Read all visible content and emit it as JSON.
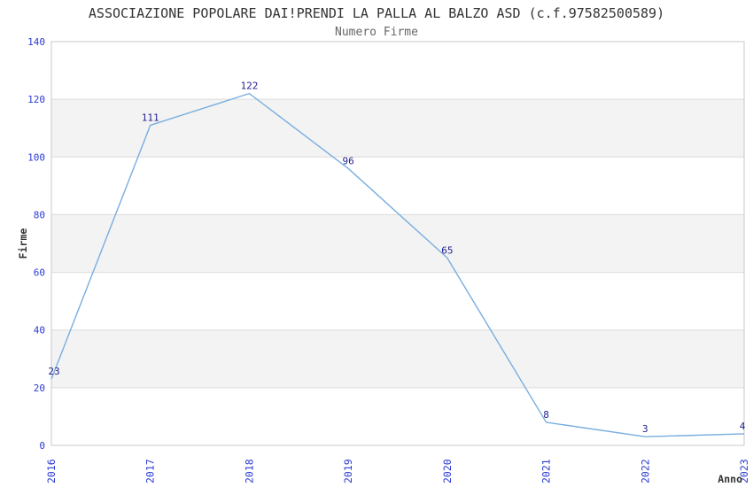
{
  "header": {
    "title": "ASSOCIAZIONE POPOLARE DAI!PRENDI LA PALLA AL BALZO ASD (c.f.97582500589)",
    "subtitle": "Numero Firme"
  },
  "chart_data": {
    "type": "line",
    "title": "ASSOCIAZIONE POPOLARE DAI!PRENDI LA PALLA AL BALZO ASD (c.f.97582500589)",
    "subtitle": "Numero Firme",
    "categories": [
      "2016",
      "2017",
      "2018",
      "2019",
      "2020",
      "2021",
      "2022",
      "2023"
    ],
    "values": [
      23,
      111,
      122,
      96,
      65,
      8,
      3,
      4
    ],
    "data_labels": [
      "23",
      "111",
      "122",
      "96",
      "65",
      "8",
      "3",
      "4"
    ],
    "xlabel": "Anno",
    "ylabel": "Firme",
    "ylim": [
      0,
      140
    ],
    "ytick_step": 20,
    "yticks": [
      "0",
      "20",
      "40",
      "60",
      "80",
      "100",
      "120",
      "140"
    ],
    "grid": true,
    "legend": "none",
    "band_pattern": "alternating horizontal bands every 20 units, gray on 20-40, 60-80, 100-120",
    "colors": {
      "line": "#79ade0",
      "band": "#f3f3f3",
      "grid": "#dcdcdc",
      "border": "#c9c9c9",
      "tick_label": "#2b3bd2",
      "data_label": "#1f1f8f",
      "title": "#333333",
      "subtitle": "#666666",
      "axis_label": "#333333",
      "background": "#ffffff"
    }
  }
}
